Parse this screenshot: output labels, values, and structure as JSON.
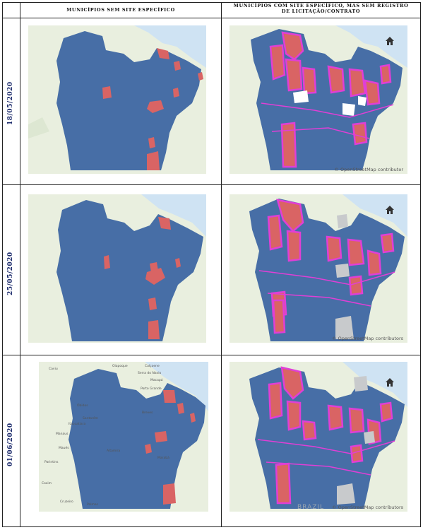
{
  "columns": {
    "left": "MUNICÍPIOS SEM SITE ESPECÍFICO",
    "right_line1": "MUNICÍPIOS COM SITE ESPECÍFICO, MAS SEM REGISTRO",
    "right_line2": "DE LICITAÇÃO/CONTRATO"
  },
  "rows": [
    {
      "date": "18/05/2020",
      "attribution": "OpenStreetMap contributor"
    },
    {
      "date": "25/05/2020",
      "attribution": "OpenStreetMap contributors"
    },
    {
      "date": "01/06/2020",
      "attribution": "OpenStreetMap contributors"
    }
  ],
  "map_labels_row3_left": [
    "Caviu",
    "Manaus",
    "Itacoatiara",
    "Maués",
    "Parintins",
    "Óbidos",
    "Santarém",
    "Altamira",
    "Marabá",
    "Breves",
    "Macapá",
    "Porto Grande",
    "Serra do Navio",
    "Calçoene",
    "Oiapoque",
    "Cruzeiro",
    "Coxim",
    "Palmas"
  ],
  "brazil_label": "BRAZIL",
  "colors": {
    "state_fill": "#476ea6",
    "highlight": "#d96464",
    "outline_magenta": "#e03fd6",
    "gray_munic": "#c8cacc",
    "sea": "#cfe3f3",
    "land": "#e9efdf",
    "row_label": "#1b2a6b"
  },
  "icons": {
    "home": "home-icon"
  }
}
